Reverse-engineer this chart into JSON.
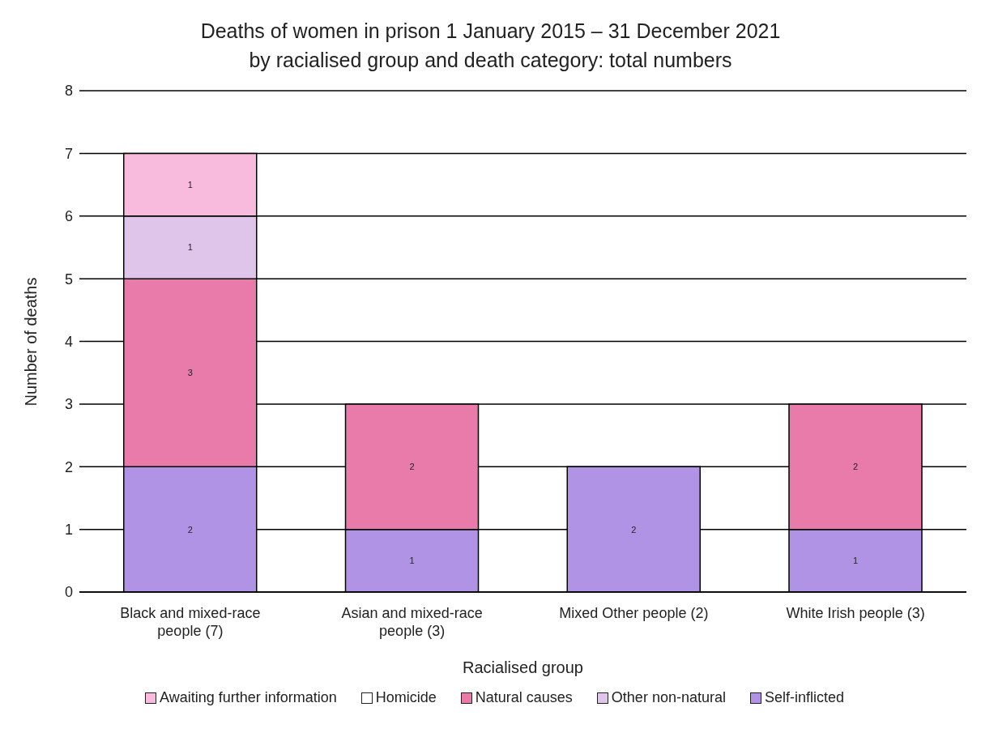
{
  "chart_data": {
    "type": "bar",
    "title": "Deaths of women in prison 1 January 2015 – 31 December 2021\nby racialised group and death category: total numbers",
    "xlabel": "Racialised group",
    "ylabel": "Number of deaths",
    "categories": [
      "Black and mixed-race people (7)",
      "Asian and mixed-race people (3)",
      "Mixed Other people (2)",
      "White Irish people (3)"
    ],
    "series": [
      {
        "name": "Self-inflicted",
        "color": "#b193e6",
        "values": [
          2,
          1,
          2,
          1
        ]
      },
      {
        "name": "Natural causes",
        "color": "#e87ba9",
        "values": [
          3,
          2,
          null,
          2
        ]
      },
      {
        "name": "Other non-natural",
        "color": "#dfc5ea",
        "values": [
          1,
          null,
          null,
          null
        ]
      },
      {
        "name": "Awaiting further information",
        "color": "#f9bbdd",
        "values": [
          1,
          null,
          null,
          null
        ]
      },
      {
        "name": "Homicide",
        "color": "#ffffff",
        "values": [
          null,
          null,
          null,
          null
        ]
      }
    ],
    "stacked": true,
    "ylim": [
      0,
      8
    ],
    "yticks": [
      0,
      1,
      2,
      3,
      4,
      5,
      6,
      7,
      8
    ],
    "grid": "y",
    "legend": "bottom",
    "data_labels": true
  }
}
